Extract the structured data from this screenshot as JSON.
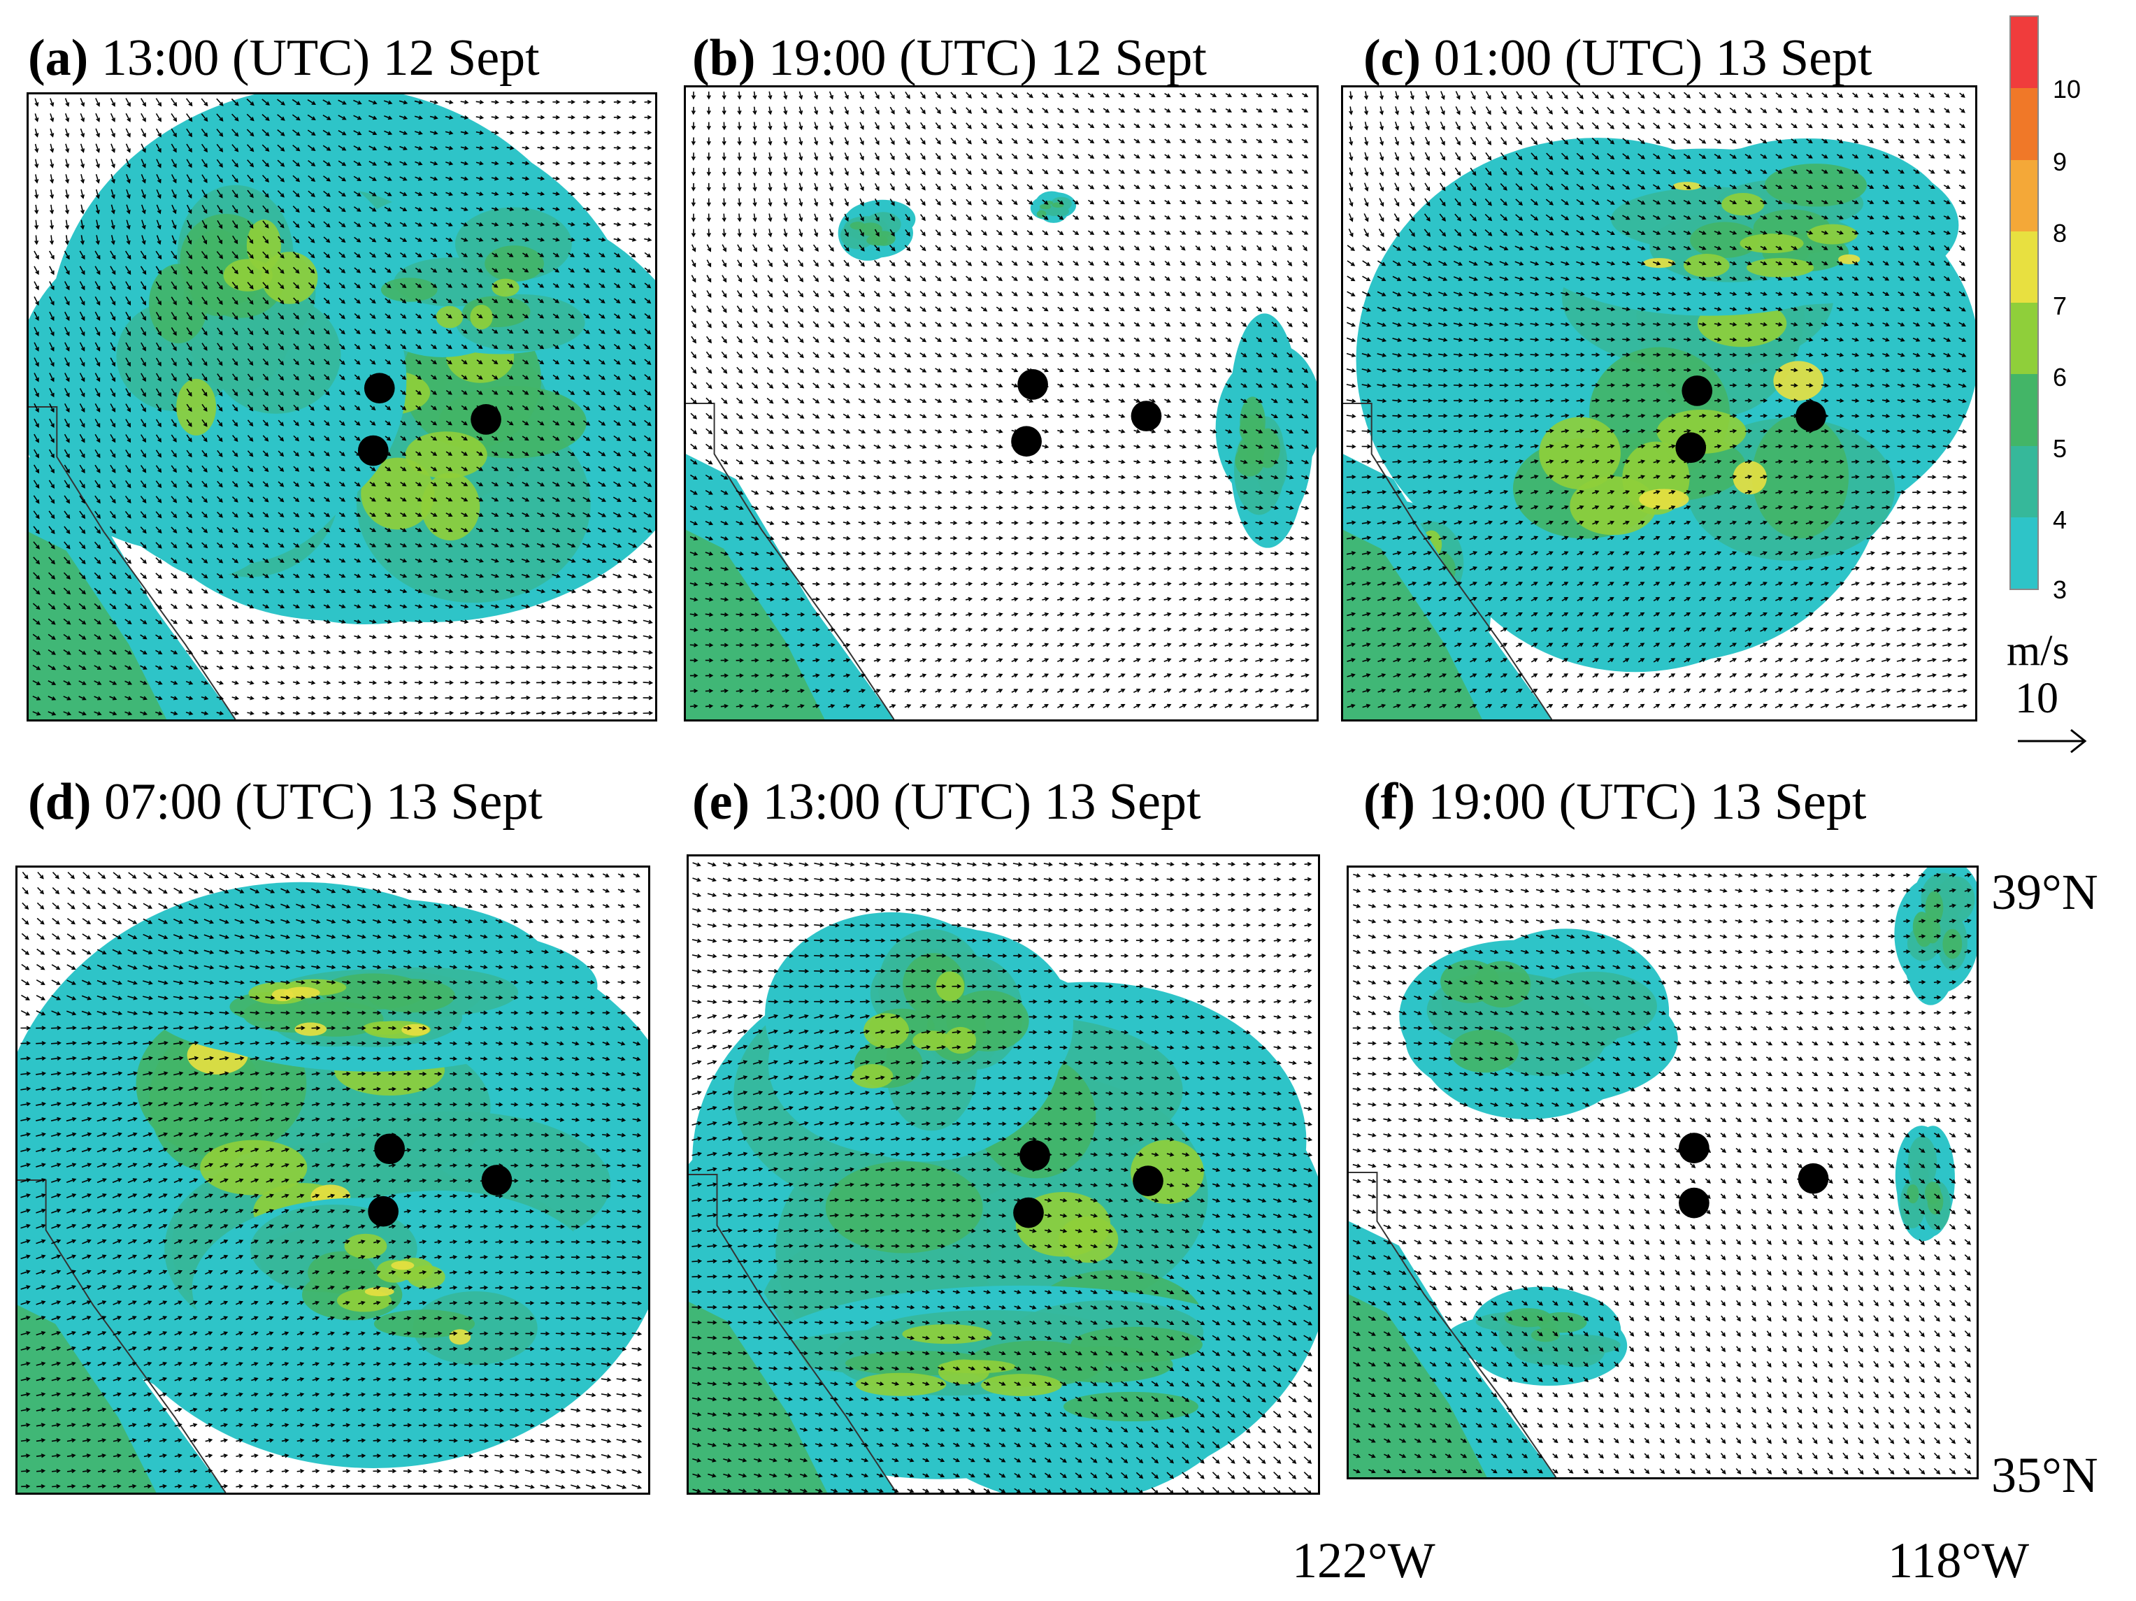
{
  "panels": [
    {
      "id": "a",
      "letter": "a",
      "time": "13:00 (UTC) 12 Sept",
      "speed": 0.62,
      "colors": [
        "#2ec4c8",
        "#36b89a",
        "#43b567",
        "#8fcf3a"
      ],
      "blobs": [
        [
          0.58,
          0.48,
          0.42,
          0.38
        ],
        [
          0.32,
          0.4,
          0.25,
          0.3
        ],
        [
          0.7,
          0.3,
          0.18,
          0.12
        ]
      ],
      "coast": true,
      "stations": [
        [
          0.56,
          0.47
        ],
        [
          0.55,
          0.57
        ],
        [
          0.73,
          0.52
        ]
      ]
    },
    {
      "id": "b",
      "letter": "b",
      "time": "19:00 (UTC) 12 Sept",
      "speed": 0.35,
      "colors": [
        "#2ec4c8",
        "#36b89a",
        "#43b567"
      ],
      "blobs": [
        [
          0.92,
          0.55,
          0.07,
          0.14
        ],
        [
          0.3,
          0.22,
          0.06,
          0.04
        ],
        [
          0.58,
          0.19,
          0.03,
          0.02
        ]
      ],
      "coast": true,
      "stations": [
        [
          0.55,
          0.47
        ],
        [
          0.54,
          0.56
        ],
        [
          0.73,
          0.52
        ]
      ]
    },
    {
      "id": "c",
      "letter": "c",
      "time": "01:00 (UTC) 13 Sept",
      "speed": 0.55,
      "colors": [
        "#2ec4c8",
        "#36b89a",
        "#43b567",
        "#8fcf3a",
        "#e8e040"
      ],
      "blobs": [
        [
          0.52,
          0.52,
          0.4,
          0.35
        ],
        [
          0.65,
          0.22,
          0.3,
          0.12
        ],
        [
          0.12,
          0.8,
          0.1,
          0.14
        ]
      ],
      "coast": true,
      "stations": [
        [
          0.56,
          0.48
        ],
        [
          0.55,
          0.57
        ],
        [
          0.74,
          0.52
        ]
      ]
    },
    {
      "id": "d",
      "letter": "d",
      "time": "07:00 (UTC) 13 Sept",
      "speed": 0.7,
      "colors": [
        "#2ec4c8",
        "#36b89a",
        "#43b567",
        "#8fcf3a",
        "#e8e040"
      ],
      "blobs": [
        [
          0.5,
          0.5,
          0.48,
          0.4
        ],
        [
          0.55,
          0.2,
          0.3,
          0.12
        ],
        [
          0.6,
          0.68,
          0.25,
          0.14
        ]
      ],
      "coast": true,
      "stations": [
        [
          0.59,
          0.45
        ],
        [
          0.58,
          0.55
        ],
        [
          0.76,
          0.5
        ]
      ]
    },
    {
      "id": "e",
      "letter": "e",
      "time": "13:00 (UTC) 13 Sept",
      "speed": 0.66,
      "colors": [
        "#2ec4c8",
        "#36b89a",
        "#43b567",
        "#8fcf3a"
      ],
      "blobs": [
        [
          0.52,
          0.55,
          0.45,
          0.35
        ],
        [
          0.38,
          0.3,
          0.2,
          0.18
        ],
        [
          0.5,
          0.8,
          0.4,
          0.12
        ]
      ],
      "coast": true,
      "stations": [
        [
          0.55,
          0.47
        ],
        [
          0.54,
          0.56
        ],
        [
          0.73,
          0.51
        ]
      ]
    },
    {
      "id": "f",
      "letter": "f",
      "time": "19:00 (UTC) 13 Sept",
      "speed": 0.35,
      "colors": [
        "#2ec4c8",
        "#36b89a",
        "#43b567"
      ],
      "blobs": [
        [
          0.3,
          0.25,
          0.2,
          0.13
        ],
        [
          0.32,
          0.77,
          0.12,
          0.06
        ],
        [
          0.94,
          0.1,
          0.06,
          0.1
        ],
        [
          0.92,
          0.52,
          0.04,
          0.08
        ]
      ],
      "coast": true,
      "stations": [
        [
          0.55,
          0.46
        ],
        [
          0.55,
          0.55
        ],
        [
          0.74,
          0.51
        ]
      ]
    }
  ],
  "colorbar": {
    "ticks": [
      "10",
      "9",
      "8",
      "7",
      "6",
      "5",
      "4",
      "3"
    ],
    "colors": [
      "#f03c3c",
      "#f07828",
      "#f4a838",
      "#e8e040",
      "#8fcf3a",
      "#43b567",
      "#36b89a",
      "#2ec4c8"
    ],
    "unit": "m/s",
    "reference_value": "10"
  },
  "coords": {
    "lat_top": "39°N",
    "lat_bottom": "35°N",
    "lon_left": "122°W",
    "lon_right": "118°W"
  }
}
